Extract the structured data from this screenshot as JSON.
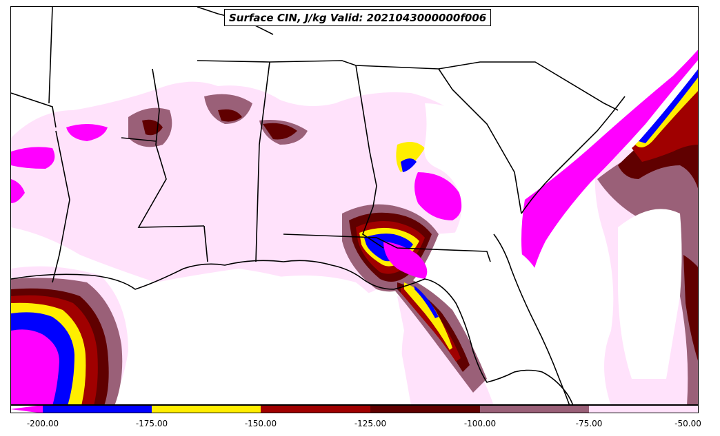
{
  "title": "Surface CIN, J/kg Valid: 2021043000000f006",
  "colorbar": {
    "ticks": [
      "-200.00",
      "-175.00",
      "-150.00",
      "-125.00",
      "-100.00",
      "-75.00",
      "-50.00"
    ],
    "segments": [
      {
        "from": -200,
        "to": -175,
        "color": "#0000ff"
      },
      {
        "from": -175,
        "to": -150,
        "color": "#ffee00"
      },
      {
        "from": -150,
        "to": -125,
        "color": "#a00000"
      },
      {
        "from": -125,
        "to": -100,
        "color": "#600000"
      },
      {
        "from": -100,
        "to": -75,
        "color": "#9a6078"
      },
      {
        "from": -75,
        "to": -50,
        "color": "#ffe2fb"
      }
    ],
    "extend_color": "#ff00ff"
  },
  "colors": {
    "magenta": "#ff00ff",
    "blue": "#0000ff",
    "yellow": "#ffee00",
    "red": "#a00000",
    "darkred": "#600000",
    "mauve": "#9a6078",
    "pink": "#ffe2fb"
  }
}
